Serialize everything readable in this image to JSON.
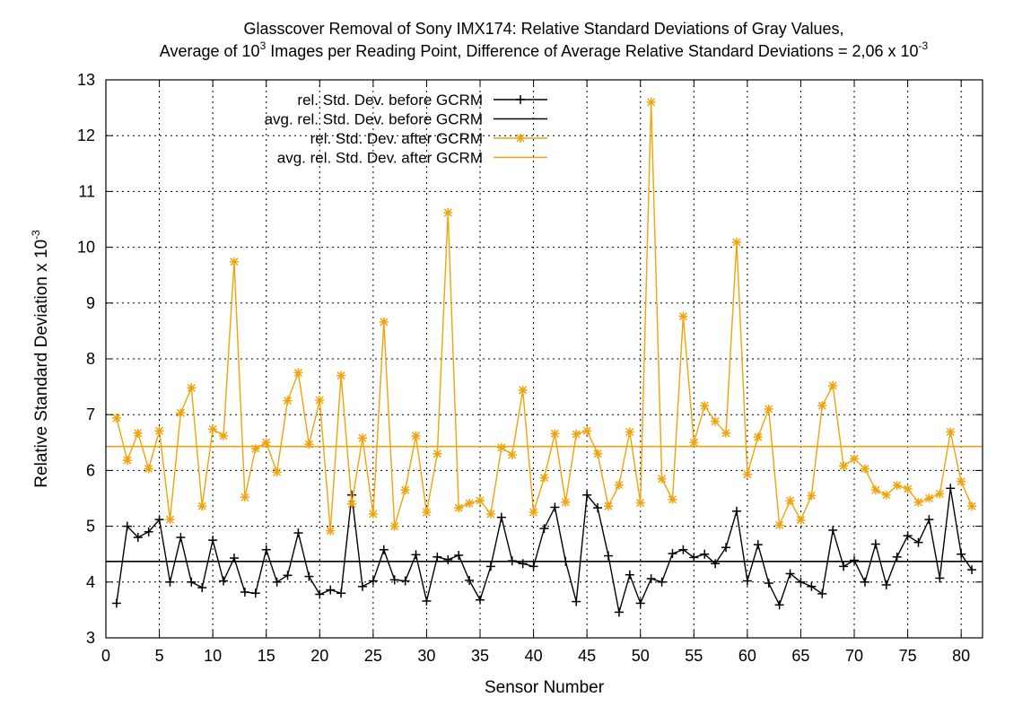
{
  "chart_data": {
    "type": "line",
    "title_lines": [
      "Glasscover Removal of Sony IMX174: Relative Standard Deviations of Gray Values,",
      [
        "Average of 10",
        "3",
        " Images per Reading Point, Difference of Average Relative Standard Deviations = 2,06 x 10",
        "-3"
      ]
    ],
    "xlabel": "Sensor Number",
    "ylabel": [
      "Relative Standard Deviation x 10",
      "-3"
    ],
    "xlim": [
      0,
      82
    ],
    "ylim": [
      3,
      13
    ],
    "xticks": [
      0,
      5,
      10,
      15,
      20,
      25,
      30,
      35,
      40,
      45,
      50,
      55,
      60,
      65,
      70,
      75,
      80
    ],
    "yticks": [
      3,
      4,
      5,
      6,
      7,
      8,
      9,
      10,
      11,
      12,
      13
    ],
    "grid": true,
    "legend_position": "top-left",
    "x": [
      1,
      2,
      3,
      4,
      5,
      6,
      7,
      8,
      9,
      10,
      11,
      12,
      13,
      14,
      15,
      16,
      17,
      18,
      19,
      20,
      21,
      22,
      23,
      24,
      25,
      26,
      27,
      28,
      29,
      30,
      31,
      32,
      33,
      34,
      35,
      36,
      37,
      38,
      39,
      40,
      41,
      42,
      43,
      44,
      45,
      46,
      47,
      48,
      49,
      50,
      51,
      52,
      53,
      54,
      55,
      56,
      57,
      58,
      59,
      60,
      61,
      62,
      63,
      64,
      65,
      66,
      67,
      68,
      69,
      70,
      71,
      72,
      73,
      74,
      75,
      76,
      77,
      78,
      79,
      80,
      81
    ],
    "series": [
      {
        "name": "rel. Std. Dev. before GCRM",
        "color": "#000000",
        "marker": "plus",
        "values": [
          3.62,
          5.0,
          4.8,
          4.9,
          5.12,
          4.0,
          4.8,
          4.0,
          3.9,
          4.75,
          4.02,
          4.43,
          3.82,
          3.8,
          4.58,
          4.0,
          4.12,
          4.88,
          4.1,
          3.78,
          3.86,
          3.8,
          5.56,
          3.92,
          4.02,
          4.58,
          4.04,
          4.02,
          4.49,
          3.66,
          4.45,
          4.4,
          4.48,
          4.03,
          3.68,
          4.28,
          5.16,
          4.38,
          4.33,
          4.28,
          4.96,
          5.34,
          4.37,
          3.65,
          5.56,
          5.33,
          4.47,
          3.46,
          4.13,
          3.62,
          4.06,
          4.0,
          4.51,
          4.58,
          4.44,
          4.5,
          4.33,
          4.62,
          5.27,
          4.02,
          4.67,
          3.98,
          3.59,
          4.15,
          4.0,
          3.92,
          3.79,
          4.93,
          4.28,
          4.39,
          4.0,
          4.68,
          3.95,
          4.45,
          4.83,
          4.71,
          5.12,
          4.07,
          5.68,
          4.5,
          4.22
        ]
      },
      {
        "name": "avg. rel. Std. Dev. before GCRM",
        "color": "#000000",
        "marker": "none",
        "constant": 4.37
      },
      {
        "name": "rel. Std. Dev. after GCRM",
        "color": "#f0a30a",
        "marker": "star",
        "values": [
          6.94,
          6.18,
          6.67,
          6.03,
          6.71,
          5.12,
          7.03,
          7.48,
          5.36,
          6.74,
          6.62,
          9.74,
          5.52,
          6.39,
          6.5,
          5.97,
          7.25,
          7.75,
          6.47,
          7.26,
          4.92,
          7.7,
          5.4,
          6.58,
          5.22,
          8.66,
          5.0,
          5.65,
          6.62,
          5.25,
          6.3,
          10.62,
          5.33,
          5.41,
          5.46,
          5.22,
          6.41,
          6.28,
          7.44,
          5.25,
          5.87,
          6.66,
          5.43,
          6.65,
          6.71,
          6.3,
          5.36,
          5.74,
          6.69,
          5.42,
          12.6,
          5.85,
          5.48,
          8.76,
          6.5,
          7.16,
          6.88,
          6.67,
          10.09,
          5.93,
          6.6,
          7.1,
          5.02,
          5.46,
          5.11,
          5.55,
          7.16,
          7.52,
          6.08,
          6.21,
          6.03,
          5.65,
          5.56,
          5.73,
          5.67,
          5.43,
          5.5,
          5.58,
          6.69,
          5.8,
          5.36
        ]
      },
      {
        "name": "avg.  rel. Std. Dev. after GCRM",
        "color": "#f0a30a",
        "marker": "none",
        "constant": 6.43
      }
    ]
  }
}
